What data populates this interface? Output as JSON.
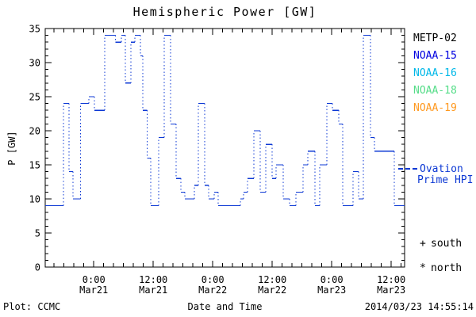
{
  "title": "Hemispheric Power [GW]",
  "colors": {
    "trace": "#0c38d4",
    "frame": "#000000",
    "background": "#ffffff"
  },
  "legend": {
    "satellites": [
      {
        "label": "METP-02",
        "color": "#000000"
      },
      {
        "label": "NOAA-15",
        "color": "#0000e0"
      },
      {
        "label": "NOAA-16",
        "color": "#00b8e8"
      },
      {
        "label": "NOAA-18",
        "color": "#55dd88"
      },
      {
        "label": "NOAA-19",
        "color": "#ff9920"
      }
    ],
    "model": {
      "label_line1": "Ovation",
      "label_line2": "Prime HPI",
      "color": "#0c38d4",
      "marker": "dash"
    },
    "hemisphere_markers": [
      {
        "symbol": "+",
        "label": "south"
      },
      {
        "symbol": "*",
        "label": "north"
      }
    ]
  },
  "footer": {
    "left": "Plot: CCMC",
    "center": "Date and Time",
    "right": "2014/03/23 14:55:14"
  },
  "chart_data": {
    "type": "line",
    "style": "step-post; horizontal segments solid, vertical connectors dotted, blue",
    "title": "Hemispheric Power [GW]",
    "xlabel": "Date and Time",
    "ylabel": "P [GW]",
    "ylim": [
      0,
      35
    ],
    "y_major_ticks": [
      0,
      5,
      10,
      15,
      20,
      25,
      30,
      35
    ],
    "y_minor_step": 1,
    "x_unit": "hours since 2014-03-21 00:00 UT",
    "x_hours_range": [
      -9.8,
      62.7
    ],
    "x_minor_step_hours": 2,
    "x_major_ticks": [
      {
        "t": 0,
        "time": "0:00",
        "date": "Mar21"
      },
      {
        "t": 12,
        "time": "12:00",
        "date": "Mar21"
      },
      {
        "t": 24,
        "time": "0:00",
        "date": "Mar22"
      },
      {
        "t": 36,
        "time": "12:00",
        "date": "Mar22"
      },
      {
        "t": 48,
        "time": "0:00",
        "date": "Mar23"
      },
      {
        "t": 60,
        "time": "12:00",
        "date": "Mar23"
      }
    ],
    "series_name": "Ovation Prime Hemispheric Power Index",
    "steps_t_hours_value_gw": [
      [
        -9.8,
        9
      ],
      [
        -6.1,
        24
      ],
      [
        -5.0,
        14
      ],
      [
        -4.2,
        10
      ],
      [
        -2.7,
        24
      ],
      [
        -1.0,
        25
      ],
      [
        0.1,
        23
      ],
      [
        2.2,
        34
      ],
      [
        4.4,
        33
      ],
      [
        5.6,
        34
      ],
      [
        6.4,
        27
      ],
      [
        7.5,
        33
      ],
      [
        8.3,
        34
      ],
      [
        9.4,
        31
      ],
      [
        9.9,
        23
      ],
      [
        10.8,
        16
      ],
      [
        11.5,
        9
      ],
      [
        13.1,
        19
      ],
      [
        14.2,
        34
      ],
      [
        15.5,
        21
      ],
      [
        16.6,
        13
      ],
      [
        17.6,
        11
      ],
      [
        18.4,
        10
      ],
      [
        20.3,
        12
      ],
      [
        21.1,
        24
      ],
      [
        22.4,
        12
      ],
      [
        23.2,
        10
      ],
      [
        24.3,
        11
      ],
      [
        25.1,
        9
      ],
      [
        29.6,
        10
      ],
      [
        30.2,
        11
      ],
      [
        31.0,
        13
      ],
      [
        32.3,
        20
      ],
      [
        33.6,
        11
      ],
      [
        34.7,
        18
      ],
      [
        36.0,
        13
      ],
      [
        36.8,
        15
      ],
      [
        38.2,
        10
      ],
      [
        39.5,
        9
      ],
      [
        40.8,
        11
      ],
      [
        42.2,
        15
      ],
      [
        43.2,
        17
      ],
      [
        44.6,
        9
      ],
      [
        45.6,
        15
      ],
      [
        47.0,
        24
      ],
      [
        48.1,
        23
      ],
      [
        49.4,
        21
      ],
      [
        50.2,
        9
      ],
      [
        52.3,
        14
      ],
      [
        53.4,
        10
      ],
      [
        54.4,
        34
      ],
      [
        55.8,
        19
      ],
      [
        56.6,
        17
      ],
      [
        60.6,
        9
      ]
    ],
    "end_t_hours": 62.7,
    "grid": "off",
    "legend_position": "right"
  }
}
